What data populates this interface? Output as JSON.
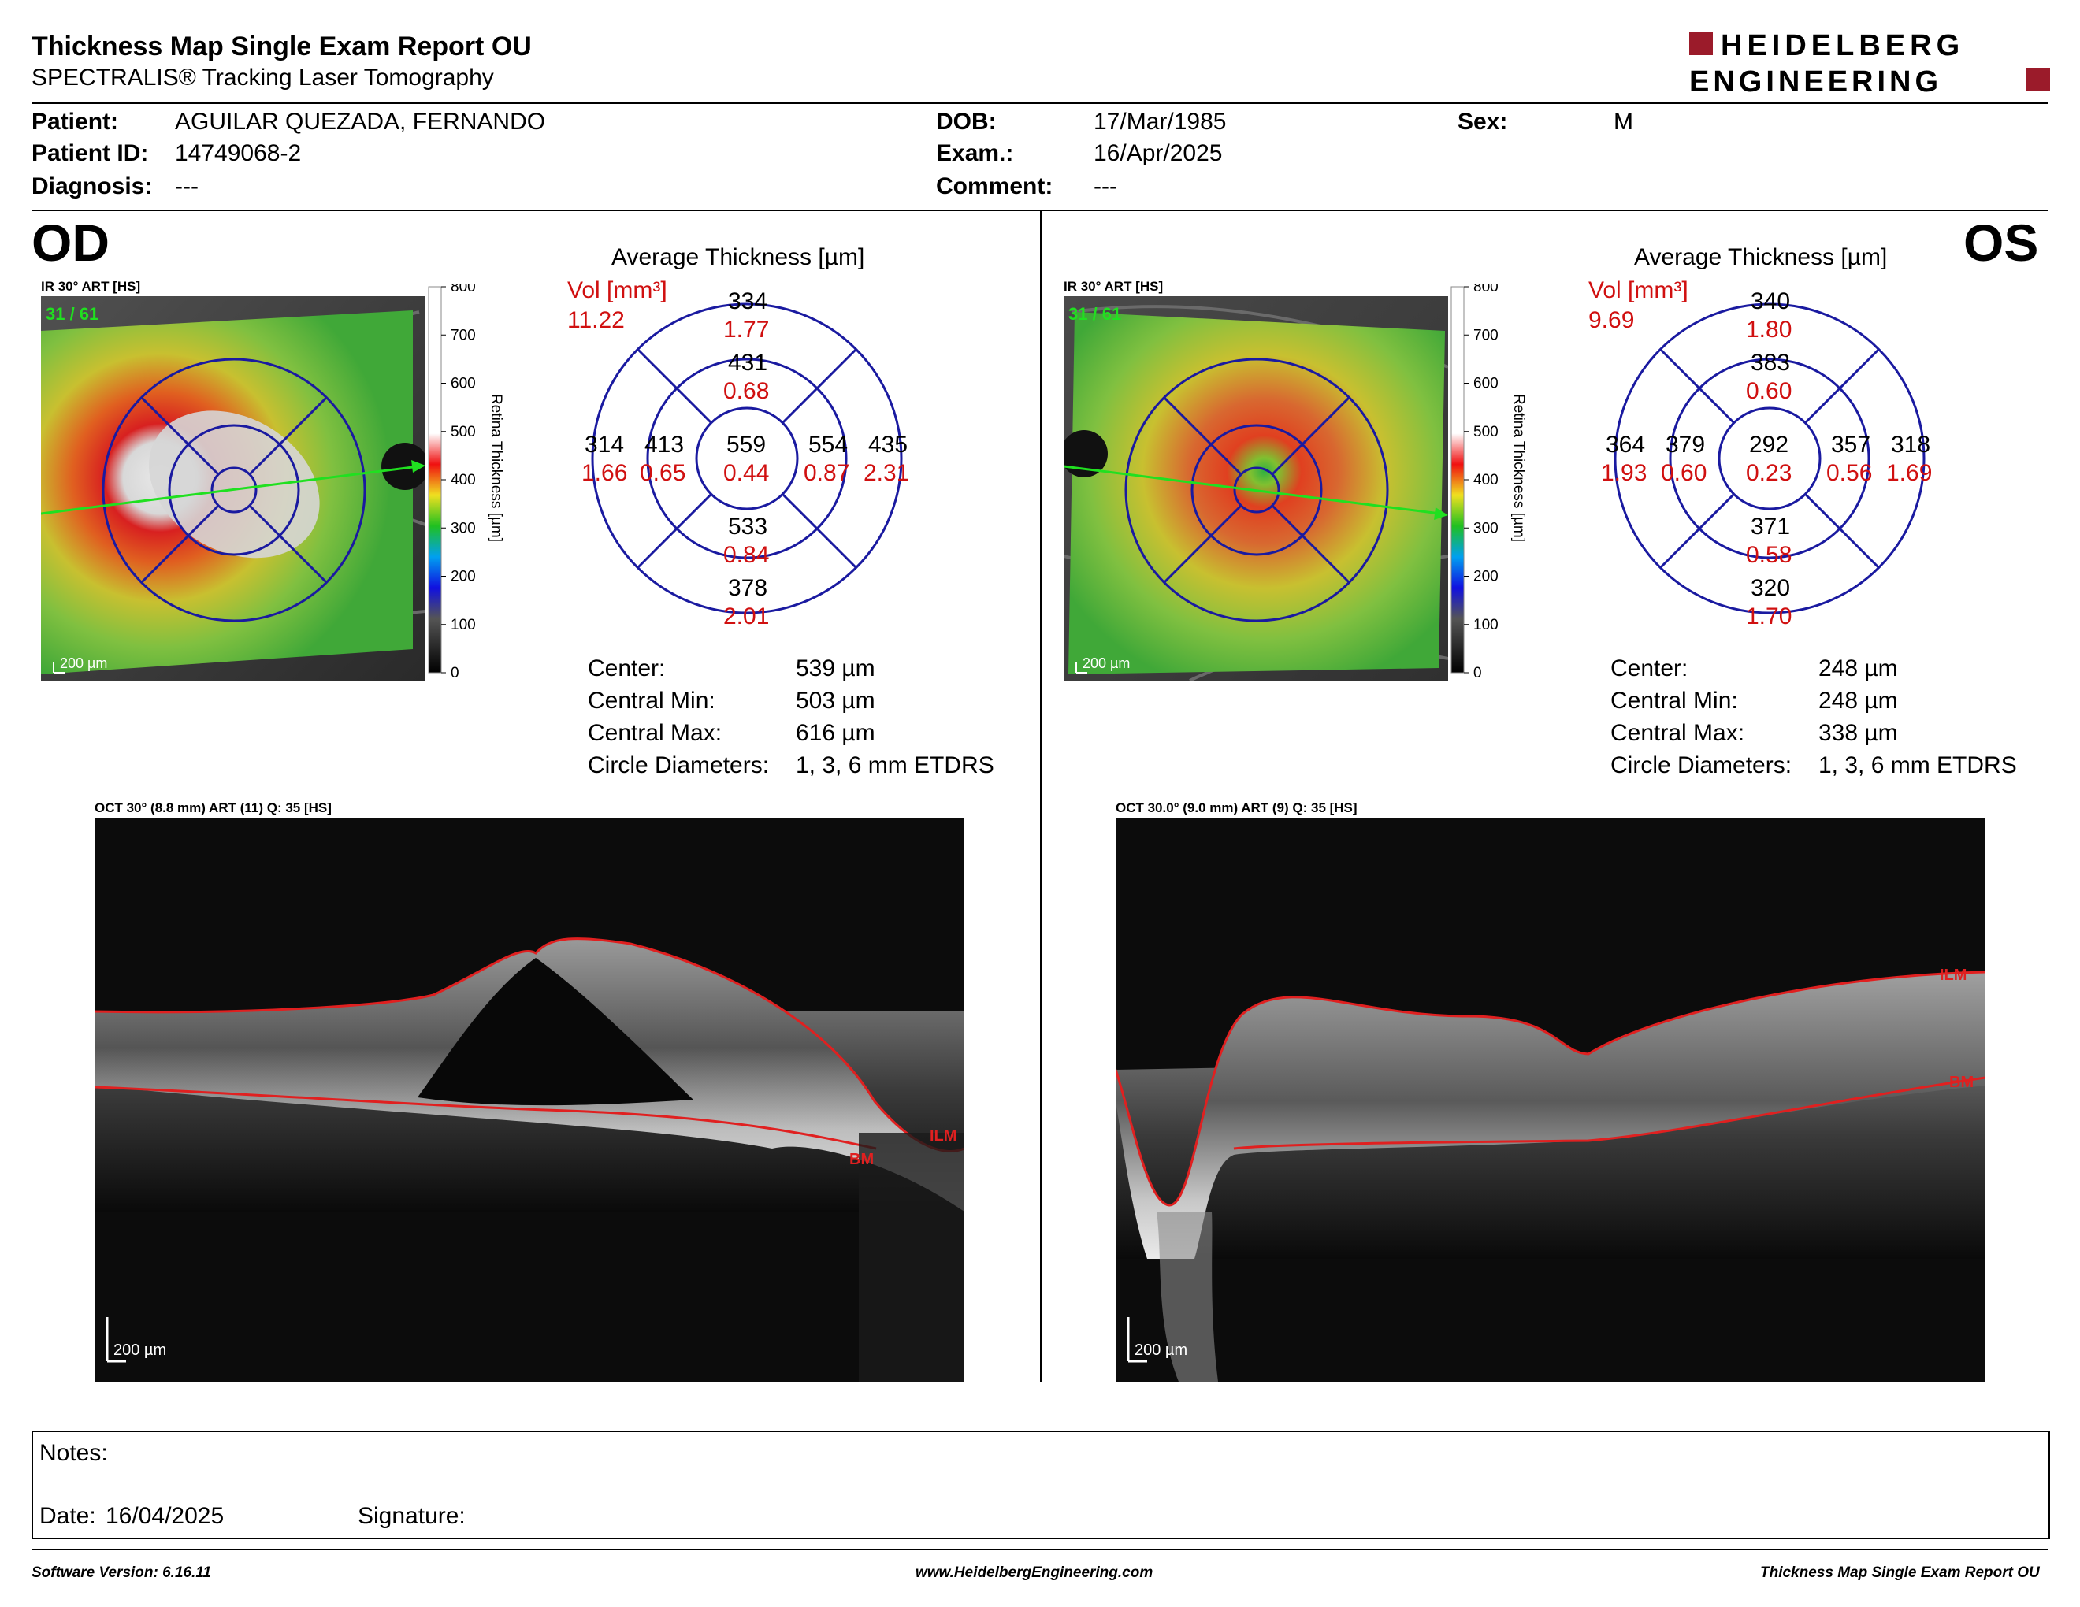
{
  "header": {
    "title": "Thickness Map Single Exam Report OU",
    "subtitle": "SPECTRALIS® Tracking Laser Tomography",
    "logo_line1": "HEIDELBERG",
    "logo_line2": "ENGINEERING",
    "logo_color": "#9b1b2a"
  },
  "patient": {
    "patient_label": "Patient:",
    "patient": "AGUILAR QUEZADA, FERNANDO",
    "id_label": "Patient ID:",
    "id": "14749068-2",
    "diagnosis_label": "Diagnosis:",
    "diagnosis": "---",
    "dob_label": "DOB:",
    "dob": "17/Mar/1985",
    "exam_label": "Exam.:",
    "exam": "16/Apr/2025",
    "comment_label": "Comment:",
    "comment": "---",
    "sex_label": "Sex:",
    "sex": "M"
  },
  "scale": {
    "ticks": [
      "800",
      "700",
      "600",
      "500",
      "400",
      "300",
      "200",
      "100",
      "0"
    ],
    "label": "Retina Thickness [µm]"
  },
  "od": {
    "eye": "OD",
    "ir_label": "IR 30° ART [HS]",
    "frame": "31 / 61",
    "scalebar": "200 µm",
    "avg_title": "Average Thickness [µm]",
    "vol_label": "Vol [mm³]",
    "vol": "11.22",
    "sectors": {
      "sup_outer": [
        "334",
        "1.77"
      ],
      "sup_inner": [
        "431",
        "0.68"
      ],
      "temp_outer": [
        "314",
        "1.66"
      ],
      "temp_inner": [
        "413",
        "0.65"
      ],
      "center": [
        "559",
        "0.44"
      ],
      "nas_inner": [
        "554",
        "0.87"
      ],
      "nas_outer": [
        "435",
        "2.31"
      ],
      "inf_inner": [
        "533",
        "0.84"
      ],
      "inf_outer": [
        "378",
        "2.01"
      ]
    },
    "stats": {
      "center_label": "Center:",
      "center": "539 µm",
      "min_label": "Central Min:",
      "min": "503 µm",
      "max_label": "Central Max:",
      "max": "616 µm",
      "diam_label": "Circle Diameters:",
      "diam": "1, 3, 6 mm ETDRS"
    },
    "oct_label": "OCT 30° (8.8 mm) ART (11) Q: 35 [HS]",
    "oct_scalebar": "200 µm",
    "ilm": "ILM",
    "bm": "BM"
  },
  "os": {
    "eye": "OS",
    "ir_label": "IR 30° ART [HS]",
    "frame": "31 / 61",
    "scalebar": "200 µm",
    "avg_title": "Average Thickness [µm]",
    "vol_label": "Vol [mm³]",
    "vol": "9.69",
    "sectors": {
      "sup_outer": [
        "340",
        "1.80"
      ],
      "sup_inner": [
        "383",
        "0.60"
      ],
      "temp_outer": [
        "364",
        "1.93"
      ],
      "temp_inner": [
        "379",
        "0.60"
      ],
      "center": [
        "292",
        "0.23"
      ],
      "nas_inner": [
        "357",
        "0.56"
      ],
      "nas_outer": [
        "318",
        "1.69"
      ],
      "inf_inner": [
        "371",
        "0.58"
      ],
      "inf_outer": [
        "320",
        "1.70"
      ]
    },
    "stats": {
      "center_label": "Center:",
      "center": "248 µm",
      "min_label": "Central Min:",
      "min": "248 µm",
      "max_label": "Central Max:",
      "max": "338 µm",
      "diam_label": "Circle Diameters:",
      "diam": "1, 3, 6 mm ETDRS"
    },
    "oct_label": "OCT 30.0° (9.0 mm) ART (9) Q: 35 [HS]",
    "oct_scalebar": "200 µm",
    "ilm": "ILM",
    "bm": "BM"
  },
  "notes": {
    "notes_label": "Notes:",
    "date_label": "Date:",
    "date": "16/04/2025",
    "signature_label": "Signature:"
  },
  "footer": {
    "software": "Software Version: 6.16.11",
    "website": "www.HeidelbergEngineering.com",
    "report": "Thickness Map Single Exam Report OU"
  }
}
